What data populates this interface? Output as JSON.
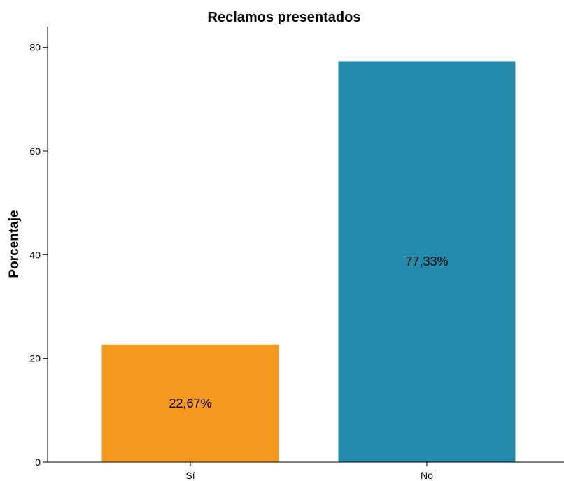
{
  "chart_data": {
    "type": "bar",
    "title": "Reclamos presentados",
    "xlabel": "",
    "ylabel": "Porcentaje",
    "categories": [
      "Sí",
      "No"
    ],
    "values": [
      22.67,
      77.33
    ],
    "data_labels": [
      "22,67%",
      "77,33%"
    ],
    "colors": [
      "#F7991F",
      "#248BAD"
    ],
    "ylim": [
      0,
      84
    ],
    "yticks": [
      0,
      20,
      40,
      60,
      80
    ],
    "grid": false,
    "legend": "none"
  }
}
